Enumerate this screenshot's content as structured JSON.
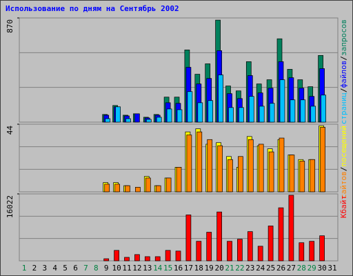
{
  "chart_data": [
    {
      "type": "bar",
      "title": "Использование по дням на Сентябрь 2002",
      "categories": [
        "1",
        "2",
        "3",
        "4",
        "5",
        "6",
        "7",
        "8",
        "9",
        "10",
        "11",
        "12",
        "13",
        "14",
        "15",
        "16",
        "17",
        "18",
        "19",
        "20",
        "21",
        "22",
        "23",
        "24",
        "25",
        "26",
        "27",
        "28",
        "29",
        "30",
        "31"
      ],
      "category_colors": [
        "#008040",
        "#000000",
        "#000000",
        "#000000",
        "#000000",
        "#000000",
        "#008040",
        "#008040",
        "#000000",
        "#000000",
        "#000000",
        "#000000",
        "#000000",
        "#008040",
        "#008040",
        "#000000",
        "#000000",
        "#000000",
        "#000000",
        "#000000",
        "#008040",
        "#008040",
        "#000000",
        "#000000",
        "#000000",
        "#000000",
        "#000000",
        "#008040",
        "#008040",
        "#000000",
        "#000000"
      ],
      "ylim": [
        0,
        870
      ],
      "yticks": [
        870
      ],
      "grid": true,
      "legend_separator": "/",
      "series": [
        {
          "name": "запросов",
          "color": "#00805c",
          "values": [
            0,
            0,
            0,
            0,
            0,
            0,
            0,
            0,
            64,
            139,
            58,
            70,
            41,
            64,
            209,
            209,
            603,
            400,
            487,
            852,
            302,
            261,
            505,
            319,
            354,
            696,
            441,
            354,
            296,
            557,
            0
          ]
        },
        {
          "name": "файлов",
          "color": "#0000ff",
          "values": [
            0,
            0,
            0,
            0,
            0,
            0,
            0,
            0,
            58,
            128,
            52,
            70,
            35,
            58,
            162,
            157,
            458,
            319,
            365,
            597,
            238,
            197,
            389,
            244,
            284,
            505,
            371,
            284,
            215,
            447,
            0
          ]
        },
        {
          "name": "страниц",
          "color": "#00c0ff",
          "values": [
            0,
            0,
            0,
            0,
            0,
            0,
            0,
            0,
            29,
            128,
            29,
            0,
            23,
            41,
            110,
            104,
            255,
            162,
            180,
            394,
            122,
            122,
            215,
            133,
            157,
            354,
            186,
            186,
            133,
            226,
            0
          ]
        }
      ]
    },
    {
      "type": "bar",
      "ylim": [
        0,
        44
      ],
      "yticks": [
        44
      ],
      "grid": true,
      "legend_separator": "/",
      "series": [
        {
          "name": "посещений",
          "color": "#ffff00",
          "values": [
            0,
            0,
            0,
            0,
            0,
            0,
            0,
            0,
            6,
            6,
            4,
            0,
            10,
            4,
            9,
            16,
            39,
            41,
            31,
            32,
            23,
            16,
            36,
            30,
            28,
            34,
            24,
            21,
            21,
            43,
            0
          ]
        },
        {
          "name": "сайтов",
          "color": "#ff8000",
          "values": [
            0,
            0,
            0,
            0,
            0,
            0,
            0,
            0,
            5,
            5,
            4,
            3,
            9,
            4,
            9,
            16,
            37,
            39,
            34,
            30,
            21,
            23,
            34,
            31,
            26,
            35,
            24,
            20,
            21,
            42,
            0
          ]
        }
      ]
    },
    {
      "type": "bar",
      "ylim": [
        0,
        16022
      ],
      "yticks": [
        16022
      ],
      "grid": true,
      "series": [
        {
          "name": "Кбайт",
          "color": "#ff0000",
          "values": [
            0,
            0,
            0,
            0,
            0,
            0,
            0,
            0,
            500,
            2500,
            835,
            1500,
            1000,
            1000,
            2500,
            2340,
            11000,
            4680,
            6850,
            11700,
            4680,
            5180,
            7000,
            3500,
            8350,
            12700,
            15700,
            4340,
            4680,
            6000,
            0
          ]
        }
      ]
    }
  ]
}
